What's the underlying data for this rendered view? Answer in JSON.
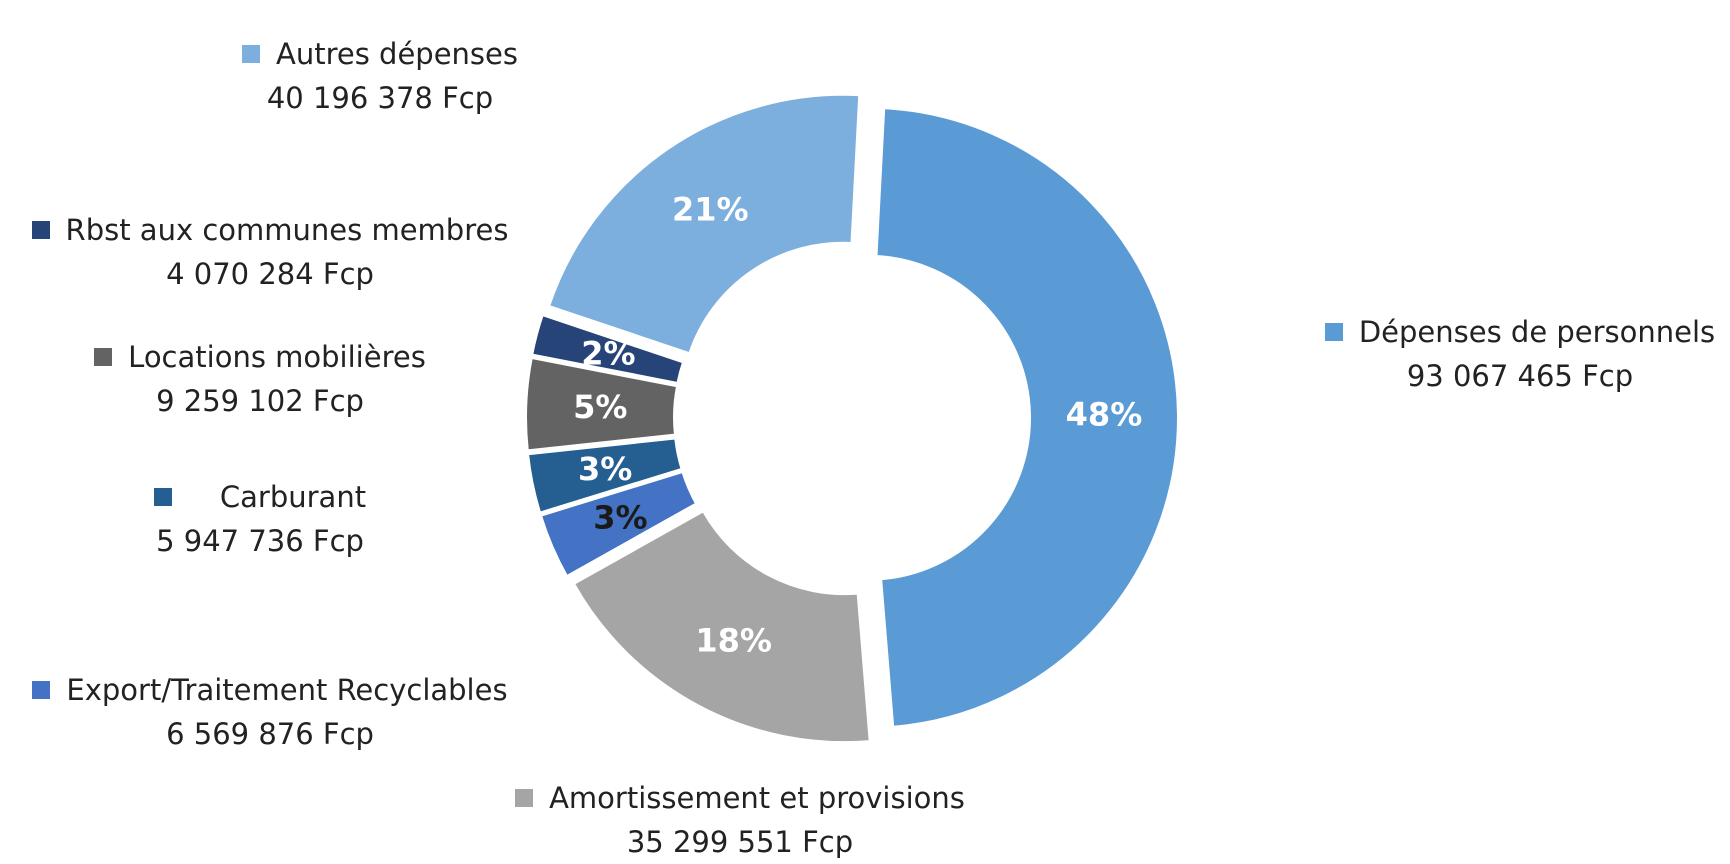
{
  "chart_data": {
    "type": "donut",
    "total_units": "Fcp",
    "slices": [
      {
        "name": "Dépenses de personnels",
        "value_text": "93 067 465 Fcp",
        "value": 93067465,
        "percent_label": "48%",
        "color": "#5B9BD5",
        "label_color": "#ffffff"
      },
      {
        "name": "Amortissement et provisions",
        "value_text": "35 299 551 Fcp",
        "value": 35299551,
        "percent_label": "18%",
        "color": "#A5A5A5",
        "label_color": "#ffffff"
      },
      {
        "name": "Export/Traitement Recyclables",
        "value_text": "6 569 876 Fcp",
        "value": 6569876,
        "percent_label": "3%",
        "color": "#4472C4",
        "label_color": "#1a1a1a"
      },
      {
        "name": "Carburant",
        "value_text": "5 947 736 Fcp",
        "value": 5947736,
        "percent_label": "3%",
        "color": "#255E91",
        "label_color": "#ffffff"
      },
      {
        "name": "Locations mobilières",
        "value_text": "9 259 102 Fcp",
        "value": 9259102,
        "percent_label": "5%",
        "color": "#636363",
        "label_color": "#ffffff"
      },
      {
        "name": "Rbst aux communes membres",
        "value_text": "4 070 284 Fcp",
        "value": 4070284,
        "percent_label": "2%",
        "color": "#264478",
        "label_color": "#ffffff"
      },
      {
        "name": "Autres dépenses",
        "value_text": "40 196 378 Fcp",
        "value": 40196378,
        "percent_label": "21%",
        "color": "#7CAFDD",
        "label_color": "#ffffff"
      }
    ],
    "exploded": "all slices",
    "legend": "labels beside slices with swatches"
  }
}
